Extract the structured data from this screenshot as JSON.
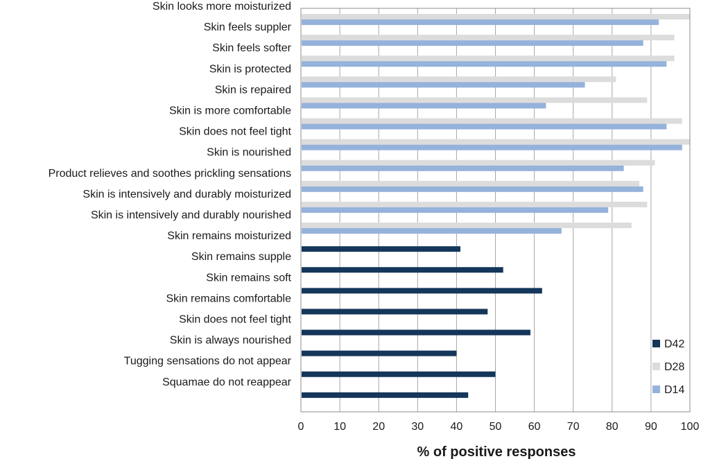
{
  "chart_data": {
    "type": "bar",
    "orientation": "horizontal",
    "title": "",
    "xlabel": "% of positive responses",
    "ylabel": "",
    "xlim": [
      0,
      100
    ],
    "x_ticks": [
      "0",
      "10",
      "20",
      "30",
      "40",
      "50",
      "60",
      "70",
      "80",
      "90",
      "100"
    ],
    "grid": true,
    "legend_position": "bottom-right",
    "categories": [
      "Skin looks more moisturized",
      "Skin feels suppler",
      "Skin feels softer",
      "Skin is protected",
      "Skin is repaired",
      "Skin is more comfortable",
      "Skin does not feel tight",
      "Skin is nourished",
      "Product relieves and soothes prickling sensations",
      "Skin is intensively and durably moisturized",
      "Skin is intensively and durably nourished",
      "Skin remains moisturized",
      "Skin remains supple",
      "Skin remains soft",
      "Skin remains comfortable",
      "Skin does not feel tight",
      "Skin is always nourished",
      "Tugging sensations do not appear",
      "Squamae do not reappear"
    ],
    "series": [
      {
        "name": "D42",
        "color": "#14365a",
        "values": [
          null,
          null,
          null,
          null,
          null,
          null,
          null,
          null,
          null,
          null,
          null,
          41,
          52,
          62,
          48,
          59,
          40,
          50,
          43
        ]
      },
      {
        "name": "D28",
        "color": "#dddcdc",
        "values": [
          100,
          96,
          96,
          81,
          89,
          98,
          100,
          91,
          87,
          89,
          85,
          null,
          null,
          null,
          null,
          null,
          null,
          null,
          null
        ]
      },
      {
        "name": "D14",
        "color": "#94b2da",
        "values": [
          92,
          88,
          94,
          73,
          63,
          94,
          98,
          83,
          88,
          79,
          67,
          null,
          null,
          null,
          null,
          null,
          null,
          null,
          null
        ]
      }
    ]
  }
}
